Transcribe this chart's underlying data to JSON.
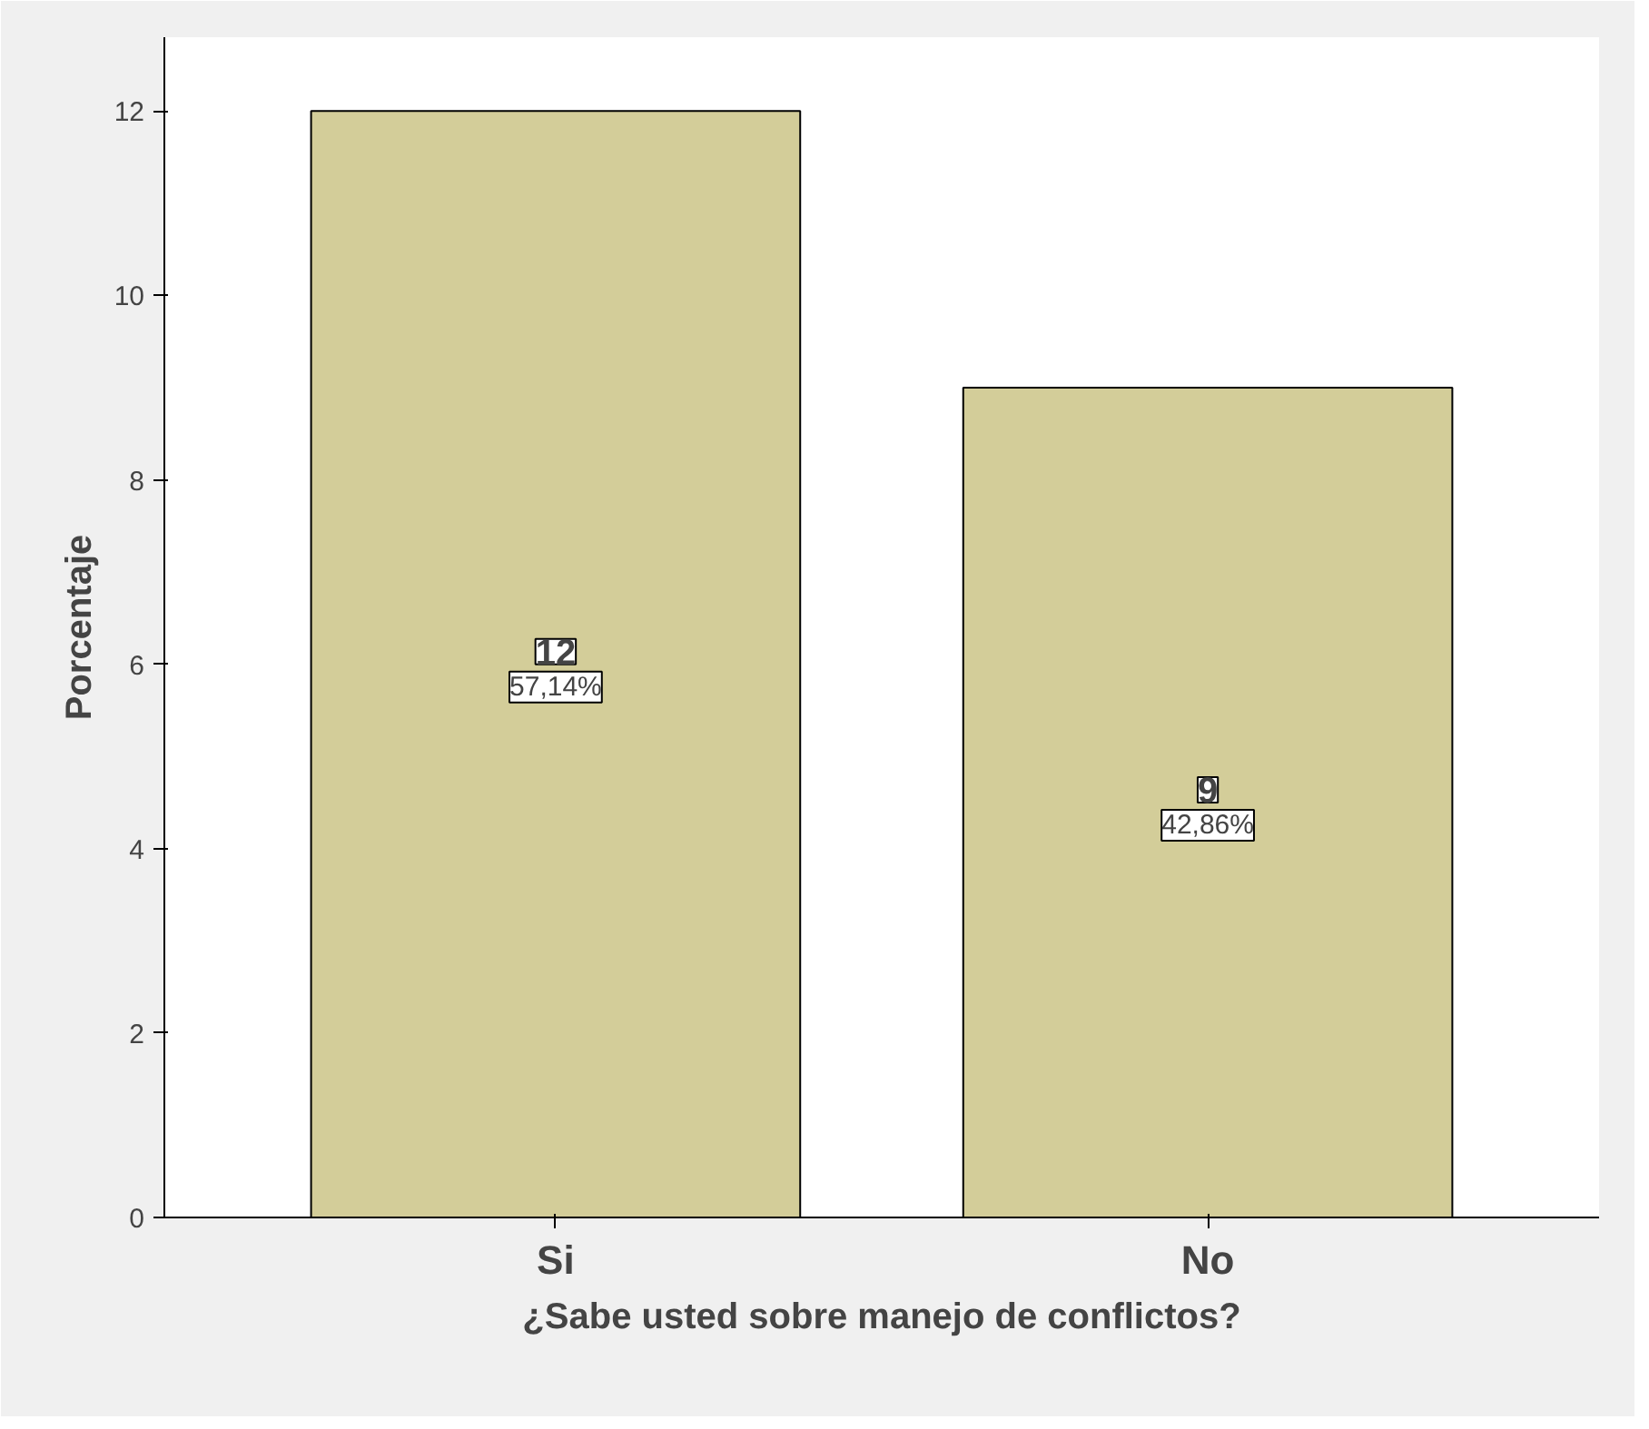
{
  "chart_data": {
    "type": "bar",
    "xlabel": "¿Sabe usted sobre manejo de conflictos?",
    "ylabel": "Porcentaje",
    "categories": [
      "Si",
      "No"
    ],
    "values": [
      12,
      9
    ],
    "color": "#d3cd99",
    "data_labels": true,
    "annotations": [
      "57,14%",
      "42,86%"
    ],
    "ylim": [
      0,
      12.8
    ],
    "yticks": [
      0,
      2,
      4,
      6,
      8,
      10,
      12
    ],
    "grid": false
  }
}
